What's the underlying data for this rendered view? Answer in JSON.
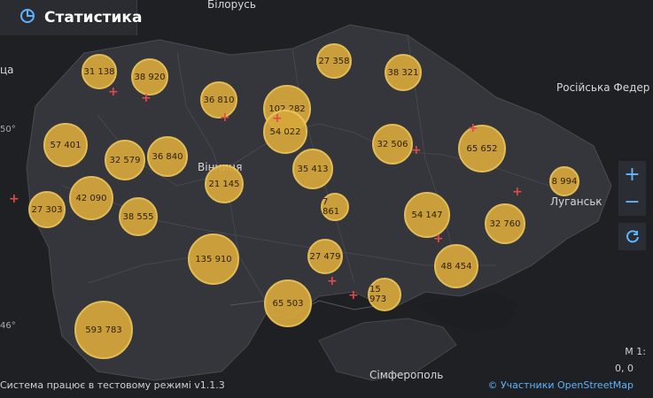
{
  "header": {
    "title": "Статистика"
  },
  "map_labels": {
    "belarus": "Білорусь",
    "russia": "Російська Федер",
    "vinnytsia": "Вінниця",
    "luhansk": "Луганськ",
    "simferopol": "Сімферополь",
    "edge_left": "ца",
    "lat_50": "50°",
    "lat_46": "46°"
  },
  "controls": {
    "zoom_in": "+",
    "zoom_out": "−"
  },
  "footer": {
    "status": "Система працює в тестовому режимі v1.1.3",
    "attribution": "© Участники OpenStreetMap",
    "scale_line1": "М 1:",
    "scale_line2": "0, 0"
  },
  "bubbles": [
    {
      "value": "31 138"
    },
    {
      "value": "38 920"
    },
    {
      "value": "27 358"
    },
    {
      "value": "38 321"
    },
    {
      "value": "36 810"
    },
    {
      "value": "102 282"
    },
    {
      "value": "54 022"
    },
    {
      "value": "57 401"
    },
    {
      "value": "32 579"
    },
    {
      "value": "36 840"
    },
    {
      "value": "32 506"
    },
    {
      "value": "65 652"
    },
    {
      "value": "35 413"
    },
    {
      "value": "21 145"
    },
    {
      "value": "8 994"
    },
    {
      "value": "42 090"
    },
    {
      "value": "27 303"
    },
    {
      "value": "38 555"
    },
    {
      "value": "7 861"
    },
    {
      "value": "54 147"
    },
    {
      "value": "32 760"
    },
    {
      "value": "135 910"
    },
    {
      "value": "27 479"
    },
    {
      "value": "48 454"
    },
    {
      "value": "65 503"
    },
    {
      "value": "15 973"
    },
    {
      "value": "593 783"
    }
  ]
}
